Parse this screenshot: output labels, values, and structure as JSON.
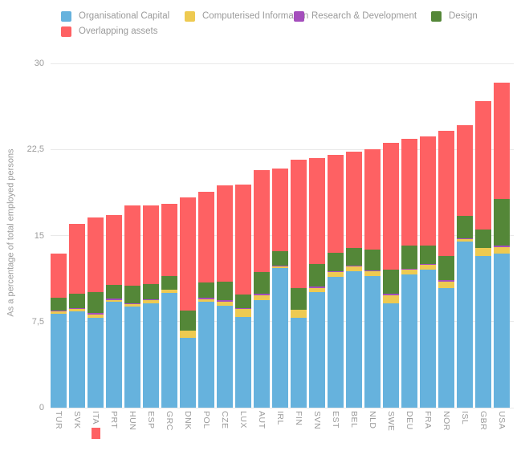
{
  "chart_data": {
    "type": "bar",
    "stacked": true,
    "ylabel": "As a percentage of total employed persons",
    "xlabel": "",
    "ylim": [
      0,
      30
    ],
    "yticks": [
      0,
      7.5,
      15,
      22.5,
      30
    ],
    "ytick_labels": [
      "0",
      "7,5",
      "15",
      "22,5",
      "30"
    ],
    "grid": true,
    "legend_position": "top",
    "highlighted_category": "ITA",
    "highlight_color": "#fe6163",
    "categories": [
      "TUR",
      "SVK",
      "ITA",
      "PRT",
      "HUN",
      "ESP",
      "GRC",
      "DNK",
      "POL",
      "CZE",
      "LUX",
      "AUT",
      "IRL",
      "FIN",
      "SVN",
      "EST",
      "BEL",
      "NLD",
      "SWE",
      "DEU",
      "FRA",
      "NOR",
      "ISL",
      "GBR",
      "USA"
    ],
    "series": [
      {
        "name": "Organisational Capital",
        "color": "#66b2dd",
        "values": [
          8.2,
          8.4,
          7.8,
          9.2,
          8.8,
          9.1,
          10.0,
          6.1,
          9.2,
          8.9,
          7.9,
          9.4,
          12.2,
          7.8,
          10.1,
          11.4,
          11.9,
          11.5,
          9.1,
          11.6,
          12.0,
          10.4,
          14.5,
          13.2,
          13.4
        ]
      },
      {
        "name": "Computerised Information",
        "color": "#eeca51",
        "values": [
          0.2,
          0.2,
          0.3,
          0.2,
          0.25,
          0.3,
          0.25,
          0.6,
          0.25,
          0.3,
          0.7,
          0.4,
          0.1,
          0.7,
          0.35,
          0.45,
          0.4,
          0.4,
          0.7,
          0.4,
          0.45,
          0.6,
          0.2,
          0.7,
          0.6
        ]
      },
      {
        "name": "Research & Development",
        "color": "#a44ebc",
        "values": [
          0.05,
          0.05,
          0.15,
          0.1,
          0.05,
          0.05,
          0.05,
          0.05,
          0.15,
          0.15,
          0.05,
          0.15,
          0.05,
          0.05,
          0.1,
          0.05,
          0.05,
          0.05,
          0.1,
          0.1,
          0.05,
          0.15,
          0.05,
          0.05,
          0.1
        ]
      },
      {
        "name": "Design",
        "color": "#548738",
        "values": [
          1.1,
          1.3,
          1.8,
          1.2,
          1.5,
          1.3,
          1.2,
          1.7,
          1.3,
          1.6,
          1.2,
          1.9,
          1.3,
          1.9,
          1.95,
          1.6,
          1.6,
          1.8,
          2.1,
          2.0,
          1.65,
          2.1,
          1.95,
          1.6,
          4.1
        ]
      },
      {
        "name": "Overlapping assets",
        "color": "#fe6163",
        "values": [
          3.9,
          6.1,
          6.5,
          6.1,
          7.0,
          6.85,
          6.25,
          9.9,
          7.9,
          8.45,
          9.6,
          8.85,
          7.2,
          11.15,
          9.25,
          8.5,
          8.35,
          8.75,
          11.05,
          9.3,
          9.5,
          10.9,
          7.9,
          11.2,
          10.1
        ]
      }
    ]
  },
  "colors": {
    "text": "#9b9b9b",
    "gridline": "#e9e9e9",
    "background": "#ffffff"
  }
}
